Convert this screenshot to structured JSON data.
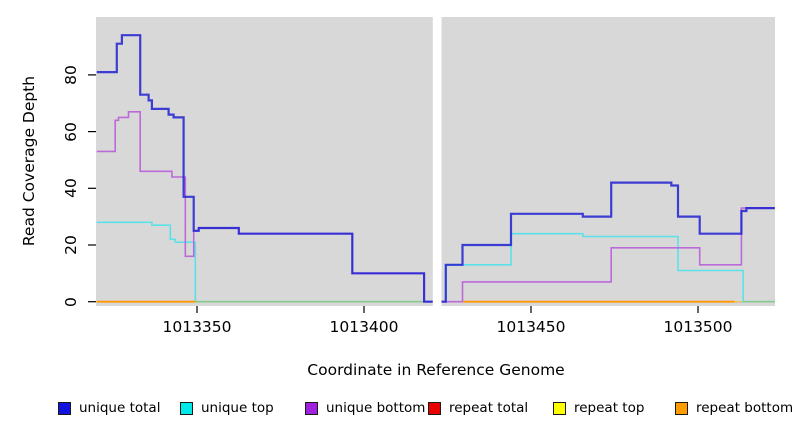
{
  "figure": {
    "x_axis": {
      "label": "Coordinate in Reference Genome",
      "tick_labels": [
        "1013350",
        "1013400",
        "1013450",
        "1013500"
      ],
      "tick_values": [
        1013350,
        1013400,
        1013450,
        1013500
      ]
    },
    "y_axis": {
      "label": "Read Coverage Depth",
      "tick_labels": [
        "0",
        "20",
        "40",
        "60",
        "80"
      ],
      "tick_values": [
        0,
        20,
        40,
        60,
        80
      ]
    },
    "legend": [
      {
        "label": "unique total",
        "color": "#1212E0"
      },
      {
        "label": "unique top",
        "color": "#00E8E8"
      },
      {
        "label": "unique bottom",
        "color": "#A020E0"
      },
      {
        "label": "repeat total",
        "color": "#E80000"
      },
      {
        "label": "repeat top",
        "color": "#FFFF00"
      },
      {
        "label": "repeat bottom",
        "color": "#FF9C00"
      }
    ],
    "colors": {
      "plot_background": "#D8D8D8",
      "gap_band": "#FFFFFF",
      "cyan_on_yellow_blend": "#8BC98B",
      "tick": "#000000"
    }
  },
  "chart_data": {
    "type": "line",
    "line_style": "step",
    "title": "",
    "xlabel": "Coordinate in Reference Genome",
    "ylabel": "Read Coverage Depth",
    "xlim": [
      1013320,
      1013523
    ],
    "ylim": [
      0,
      97
    ],
    "x_ticks": [
      1013350,
      1013400,
      1013450,
      1013500
    ],
    "y_ticks": [
      0,
      20,
      40,
      60,
      80
    ],
    "grid": false,
    "legend_position": "bottom",
    "gap_no_data": [
      1013420.6,
      1013423.2
    ],
    "series": [
      {
        "name": "repeat total",
        "color": "#DD2222",
        "width": 1.2,
        "opacity": 1,
        "segments": [
          {
            "points": [
              [
                1013320,
                0
              ]
            ],
            "end": 1013523
          }
        ]
      },
      {
        "name": "repeat top",
        "color": "#E6DC64",
        "width": 1.2,
        "opacity": 1,
        "segments": [
          {
            "points": [
              [
                1013320,
                0
              ]
            ],
            "end": 1013523
          }
        ]
      },
      {
        "name": "unique top",
        "color": "#5CE1E8",
        "width": 1.6,
        "opacity": 1,
        "zero_blend": "#8BC98B",
        "segments": [
          {
            "points": [
              [
                1013320,
                28
              ],
              [
                1013336.5,
                27
              ],
              [
                1013342,
                22
              ],
              [
                1013343.5,
                21
              ],
              [
                1013349.5,
                0
              ],
              [
                1013424.5,
                13
              ],
              [
                1013444,
                24
              ],
              [
                1013465.5,
                23
              ],
              [
                1013494,
                11
              ],
              [
                1013513.5,
                0
              ]
            ],
            "end": 1013523
          }
        ]
      },
      {
        "name": "repeat bottom",
        "color": "#FF9800",
        "width": 1.8,
        "opacity": 1,
        "segments": [
          {
            "points": [
              [
                1013320,
                0
              ]
            ],
            "end": 1013349.5
          },
          {
            "points": [
              [
                1013429.5,
                0
              ]
            ],
            "end": 1013511
          }
        ]
      },
      {
        "name": "unique bottom",
        "color": "#BB6BD9",
        "width": 1.6,
        "opacity": 1,
        "segments": [
          {
            "points": [
              [
                1013320,
                53
              ],
              [
                1013325.5,
                64
              ],
              [
                1013326.5,
                65
              ],
              [
                1013329.5,
                67
              ],
              [
                1013333,
                46
              ],
              [
                1013342.5,
                44
              ],
              [
                1013346.5,
                16
              ],
              [
                1013349,
                25
              ],
              [
                1013350.5,
                26
              ],
              [
                1013362.5,
                24
              ],
              [
                1013396.5,
                10
              ],
              [
                1013418,
                0
              ],
              [
                1013429.5,
                7
              ],
              [
                1013474,
                19
              ],
              [
                1013500.5,
                13
              ],
              [
                1013513,
                33
              ]
            ],
            "end": 1013523
          }
        ]
      },
      {
        "name": "unique total",
        "color": "#2121D2",
        "width": 2.2,
        "opacity": 0.85,
        "segments": [
          {
            "points": [
              [
                1013320,
                81
              ],
              [
                1013326,
                91
              ],
              [
                1013327.5,
                94
              ],
              [
                1013333,
                73
              ],
              [
                1013335.5,
                71
              ],
              [
                1013336.5,
                68
              ],
              [
                1013341.5,
                66
              ],
              [
                1013343,
                65
              ],
              [
                1013346,
                37
              ],
              [
                1013349,
                25
              ],
              [
                1013350.5,
                26
              ],
              [
                1013362.5,
                24
              ],
              [
                1013396.5,
                10
              ],
              [
                1013418,
                0
              ],
              [
                1013424.5,
                13
              ],
              [
                1013429.5,
                20
              ],
              [
                1013444,
                31
              ],
              [
                1013465.5,
                30
              ],
              [
                1013474,
                42
              ],
              [
                1013492,
                41
              ],
              [
                1013494,
                30
              ],
              [
                1013500.5,
                24
              ],
              [
                1013513,
                32
              ],
              [
                1013514.5,
                33
              ]
            ],
            "end": 1013523
          }
        ]
      }
    ]
  }
}
